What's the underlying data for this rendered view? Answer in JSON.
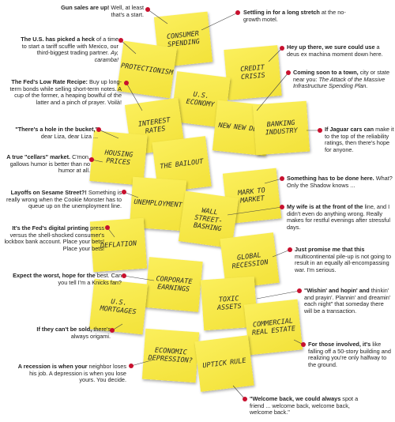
{
  "notes": [
    {
      "label": "CONSUMER SPENDING"
    },
    {
      "label": "PROTECTIONISM"
    },
    {
      "label": "CREDIT CRISIS"
    },
    {
      "label": "U.S. ECONOMY"
    },
    {
      "label": "INTEREST RATES"
    },
    {
      "label": "NEW NEW DEAL"
    },
    {
      "label": "BANKING INDUSTRY"
    },
    {
      "label": "HOUSING PRICES"
    },
    {
      "label": "THE BAILOUT"
    },
    {
      "label": "MARK TO MARKET"
    },
    {
      "label": "UNEMPLOYMENT"
    },
    {
      "label": "WALL STREET-BASHING"
    },
    {
      "label": "DEFLATION"
    },
    {
      "label": "GLOBAL RECESSION"
    },
    {
      "label": "CORPORATE EARNINGS"
    },
    {
      "label": "TOXIC ASSETS"
    },
    {
      "label": "U.S. MORTGAGES"
    },
    {
      "label": "COMMERCIAL REAL ESTATE"
    },
    {
      "label": "ECONOMIC DEPRESSION?"
    },
    {
      "label": "UPTICK RULE"
    }
  ],
  "annotations": [
    {
      "lead": "Gun sales are up!",
      "text": "Well, at least that's a start."
    },
    {
      "lead": "The U.S. has picked a heck",
      "text": "of a time to start a tariff scuffle with Mexico, our third-biggest trading partner.",
      "emphasis": "Ay, caramba!"
    },
    {
      "lead": "The Fed's Low Rate Recipe:",
      "text": "Buy up long-term bonds while selling short-term notes. A cup of the former, a heaping bowlful of the latter and a pinch of prayer. Voilà!"
    },
    {
      "lead": "\"There's a hole in the bucket,\"",
      "text": "dear Liza, dear Liza ..."
    },
    {
      "lead": "A true \"cellars\" market.",
      "text": "C'mon, gallows humor is better than no humor at all."
    },
    {
      "lead": "Layoffs on Sesame Street?!",
      "text": "Something is really wrong when the Cookie Monster has to queue up on the unemployment line."
    },
    {
      "lead": "It's the Fed's digital printing",
      "text": "press versus the shell-shocked consumer's lockbox bank account. Place your bets! Place your bets!"
    },
    {
      "lead": "Expect the worst, hope for the",
      "text": "best. Can you tell I'm a Knicks fan?"
    },
    {
      "lead": "If they can't be sold,",
      "text": "there's always origami."
    },
    {
      "lead": "A recession is when your",
      "text": "neighbor loses his job. A depression is when you lose yours. You decide."
    },
    {
      "lead": "Settling in for a long stretch",
      "text": "at the no-growth motel."
    },
    {
      "lead": "Hey up there, we sure could use",
      "text": "a deus ex machina moment down here."
    },
    {
      "lead": "Coming soon to a town,",
      "text": "city or state near you:",
      "emphasis": "The Attack of the Massive Infrastructure Spending Plan."
    },
    {
      "lead": "If Jaguar cars can",
      "text": "make it to the top of the reliability ratings, then there's hope for anyone."
    },
    {
      "lead": "Something has to be done here.",
      "text": "What? Only the Shadow knows ..."
    },
    {
      "lead": "My wife is at the front of the",
      "text": "line, and I didn't even do anything wrong. Really makes for restful evenings after stressful days."
    },
    {
      "lead": "Just promise me that this",
      "text": "multicontinental pile-up is not going to result in an equally all-encompassing war. I'm serious."
    },
    {
      "lead": "\"Wishin' and hopin' and",
      "text": "thinkin' and prayin'. Plannin' and dreamin' each night\" that someday there will be a transaction."
    },
    {
      "lead": "For those involved, it's",
      "text": "like falling off a 50-story building and realizing you're only halfway to the ground."
    },
    {
      "lead": "\"Welcome back, we could always",
      "text": "spot a friend ... welcome back, welcome back, welcome back.\""
    }
  ]
}
